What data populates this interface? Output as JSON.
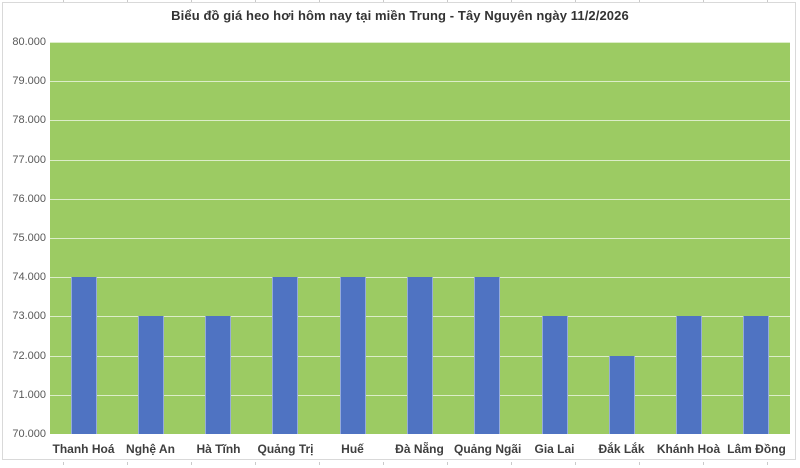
{
  "chart_data": {
    "type": "bar",
    "title": "Biểu đồ giá heo hơi hôm nay tại miền Trung - Tây Nguyên ngày 11/2/2026",
    "categories": [
      "Thanh Hoá",
      "Nghệ An",
      "Hà Tĩnh",
      "Quảng Trị",
      "Huế",
      "Đà Nẵng",
      "Quảng Ngãi",
      "Gia Lai",
      "Đắk Lắk",
      "Khánh Hoà",
      "Lâm Đồng"
    ],
    "values": [
      74000,
      73000,
      73000,
      74000,
      74000,
      74000,
      74000,
      73000,
      72000,
      73000,
      73000
    ],
    "y_ticks": [
      "80.000",
      "79.000",
      "78.000",
      "77.000",
      "76.000",
      "75.000",
      "74.000",
      "73.000",
      "72.000",
      "71.000",
      "70.000"
    ],
    "ylim": [
      70000,
      80000
    ],
    "y_step": 1000,
    "xlabel": "",
    "ylabel": "",
    "grid": "horizontal",
    "legend": "none",
    "colors": {
      "bar": "#4f73c2",
      "plot_background": "#9ccb63",
      "gridline": "rgba(255,255,255,0.65)",
      "title_text": "#333333",
      "y_axis_text": "#595959",
      "x_axis_text": "#3f3f3f",
      "chart_border": "#d9d9d9"
    }
  }
}
